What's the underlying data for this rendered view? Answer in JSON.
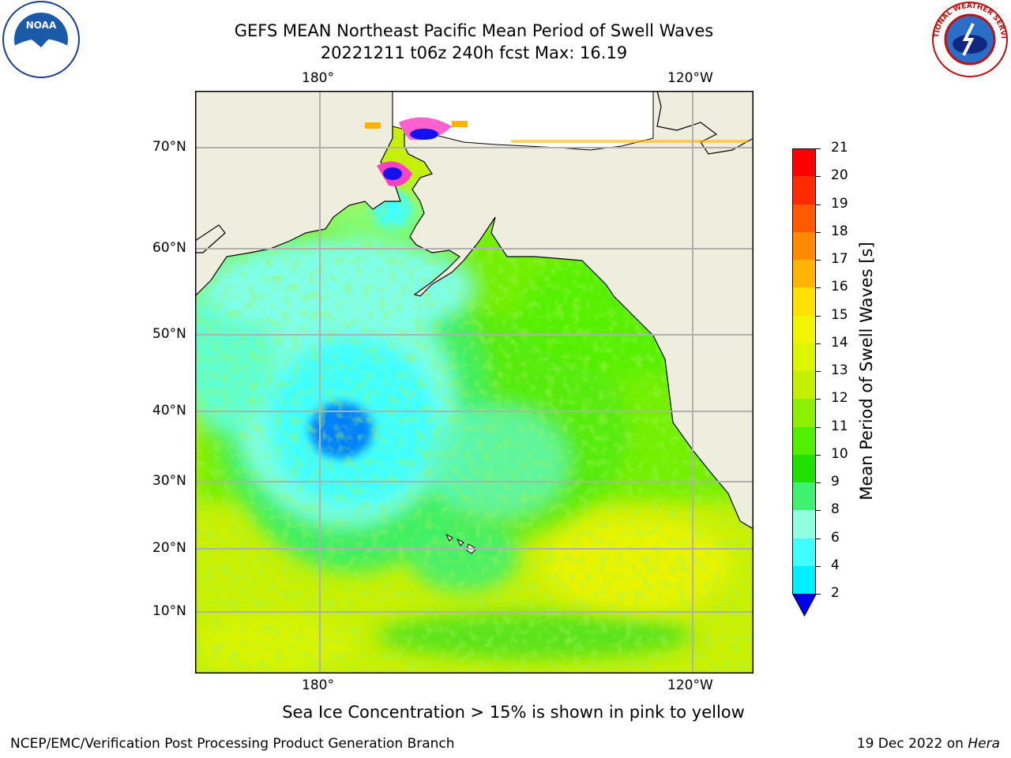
{
  "header": {
    "title_line1": "GEFS MEAN Northeast Pacific Mean Period of Swell Waves",
    "title_line2": "20221211 t06z 240h fcst   Max: 16.19"
  },
  "logos": {
    "left": "NOAA",
    "right": "NATIONAL WEATHER SERVICE"
  },
  "map": {
    "lon_labels_top": [
      "180°",
      "120°W"
    ],
    "lon_labels_bottom": [
      "180°",
      "120°W"
    ],
    "lat_labels": [
      "70°N",
      "60°N",
      "50°N",
      "40°N",
      "30°N",
      "20°N",
      "10°N"
    ],
    "colors": {
      "land": "#efedde",
      "grid": "#b0b0b0",
      "coast": "#000000"
    }
  },
  "colorbar": {
    "label": "Mean Period of Swell Waves [s]",
    "ticks": [
      "21",
      "20",
      "19",
      "18",
      "17",
      "16",
      "15",
      "14",
      "13",
      "12",
      "11",
      "10",
      "9",
      "8",
      "6",
      "4",
      "2"
    ],
    "colors": [
      "#ff0000",
      "#ff2a00",
      "#ff5a00",
      "#ff8a00",
      "#ffb400",
      "#ffe100",
      "#f0f500",
      "#dcf500",
      "#c4f000",
      "#8cf000",
      "#50f000",
      "#20e000",
      "#40f070",
      "#90ffe0",
      "#40ffff",
      "#00f0ff",
      "#0080ff",
      "#0000f0"
    ]
  },
  "caption": "Sea Ice Concentration > 15% is shown in pink to yellow",
  "footer": {
    "left": "NCEP/EMC/Verification Post Processing Product Generation Branch",
    "right_date": "19 Dec 2022 on ",
    "right_host": "Hera"
  }
}
